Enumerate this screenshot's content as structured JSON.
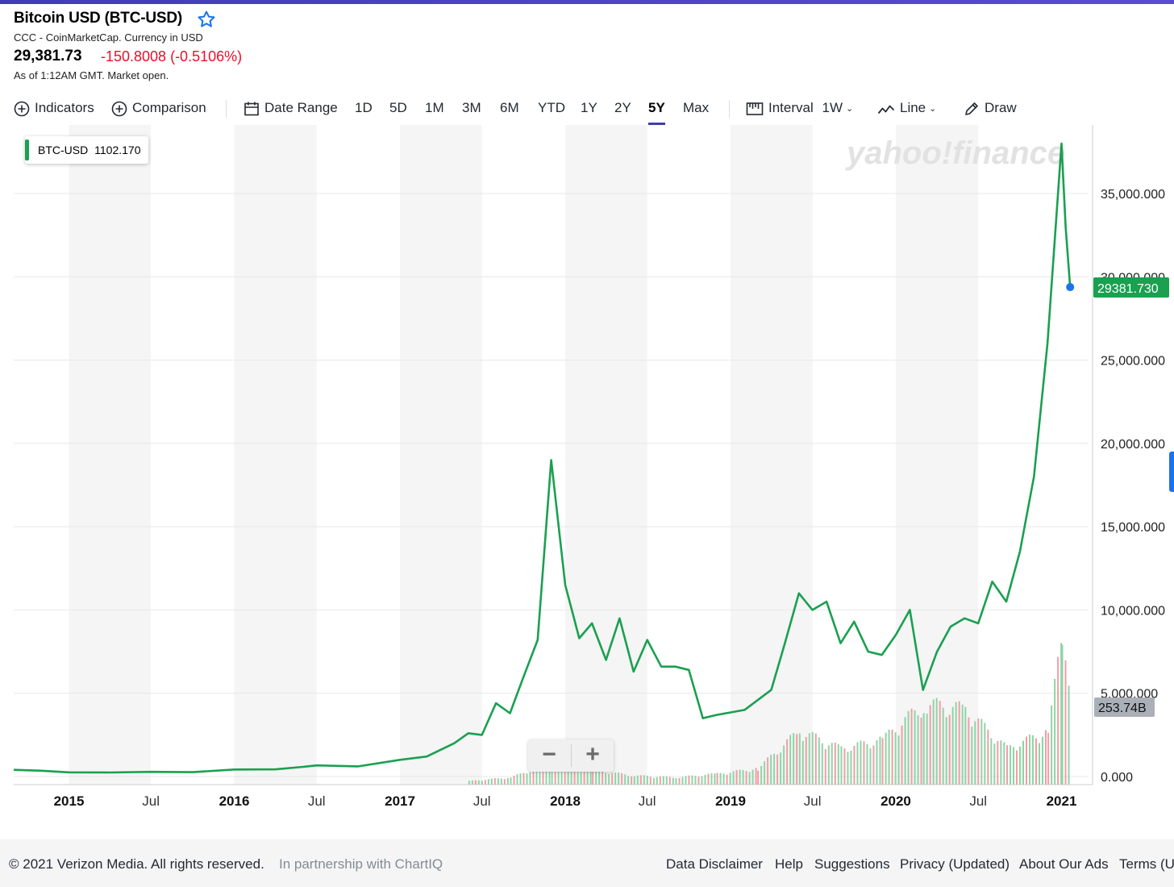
{
  "header": {
    "title": "Bitcoin USD (BTC-USD)",
    "subtitle": "CCC - CoinMarketCap. Currency in USD",
    "price": "29,381.73",
    "change": "-150.8008 (-0.5106%)",
    "as_of": "As of 1:12AM GMT. Market open.",
    "colors": {
      "up": "#1aa050",
      "down": "#eb0f29",
      "accent": "#3f3db6",
      "star": "#1a73e8"
    }
  },
  "toolbar": {
    "indicators": "Indicators",
    "comparison": "Comparison",
    "date_range": "Date Range",
    "ranges": [
      "1D",
      "5D",
      "1M",
      "3M",
      "6M",
      "YTD",
      "1Y",
      "2Y",
      "5Y",
      "Max"
    ],
    "active_range": "5Y",
    "interval_label": "Interval",
    "interval_value": "1W",
    "chart_type": "Line",
    "draw": "Draw"
  },
  "legend": {
    "symbol": "BTC-USD",
    "value": "1102.170"
  },
  "watermark": "yahoo!finance",
  "zoom": {
    "minus": "−",
    "plus": "+"
  },
  "chart_data": {
    "type": "line",
    "series": [
      {
        "name": "BTC-USD",
        "x": [
          "2014-09",
          "2014-11",
          "2015-01",
          "2015-04",
          "2015-07",
          "2015-10",
          "2016-01",
          "2016-04",
          "2016-06",
          "2016-07",
          "2016-10",
          "2017-01",
          "2017-03",
          "2017-05",
          "2017-06",
          "2017-07",
          "2017-08",
          "2017-09",
          "2017-10",
          "2017-11",
          "2017-12",
          "2018-01",
          "2018-02",
          "2018-03",
          "2018-04",
          "2018-05",
          "2018-06",
          "2018-07",
          "2018-08",
          "2018-09",
          "2018-10",
          "2018-11",
          "2018-12",
          "2019-02",
          "2019-04",
          "2019-05",
          "2019-06",
          "2019-07",
          "2019-08",
          "2019-09",
          "2019-10",
          "2019-11",
          "2019-12",
          "2020-01",
          "2020-02",
          "2020-03",
          "2020-04",
          "2020-05",
          "2020-06",
          "2020-07",
          "2020-08",
          "2020-09",
          "2020-10",
          "2020-11",
          "2020-12",
          "2021-01",
          "2021-01-10",
          "2021-01-20"
        ],
        "y": [
          400,
          350,
          250,
          240,
          280,
          260,
          420,
          430,
          580,
          670,
          610,
          1000,
          1200,
          2000,
          2600,
          2500,
          4400,
          3800,
          6000,
          8200,
          19000,
          11500,
          8300,
          9200,
          7000,
          9500,
          6300,
          8200,
          6600,
          6600,
          6400,
          3500,
          3700,
          4000,
          5200,
          8000,
          11000,
          10000,
          10500,
          8000,
          9300,
          7500,
          7300,
          8500,
          10000,
          5200,
          7500,
          9000,
          9500,
          9200,
          11700,
          10500,
          13500,
          18000,
          26000,
          38000,
          33000,
          29381.73
        ]
      }
    ],
    "volume": {
      "name": "Volume",
      "last_label": "253.74B",
      "x": [
        "2017-06",
        "2017-09",
        "2017-12",
        "2018-03",
        "2018-06",
        "2018-09",
        "2018-12",
        "2019-03",
        "2019-06",
        "2019-09",
        "2019-12",
        "2020-03",
        "2020-06",
        "2020-09",
        "2020-12",
        "2021-01",
        "2021-01-20"
      ],
      "y": [
        20,
        40,
        120,
        80,
        50,
        40,
        60,
        90,
        300,
        200,
        250,
        450,
        420,
        200,
        300,
        820,
        400
      ]
    },
    "x_ticks": [
      "2015",
      "Jul",
      "2016",
      "Jul",
      "2017",
      "Jul",
      "2018",
      "Jul",
      "2019",
      "Jul",
      "2020",
      "Jul",
      "2021"
    ],
    "y_ticks": [
      "0.000",
      "5,000.000",
      "10,000.000",
      "15,000.000",
      "20,000.000",
      "25,000.000",
      "30,000.000",
      "35,000.000"
    ],
    "ylim": [
      0,
      38000
    ],
    "last_value_label": "29381.730",
    "grid": true,
    "legend_position": "top-left"
  },
  "footer": {
    "copyright": "© 2021 Verizon Media. All rights reserved.",
    "partner": "In partnership with ChartIQ",
    "links": [
      "Data Disclaimer",
      "Help",
      "Suggestions",
      "Privacy (Updated)",
      "About Our Ads",
      "Terms (U"
    ]
  }
}
